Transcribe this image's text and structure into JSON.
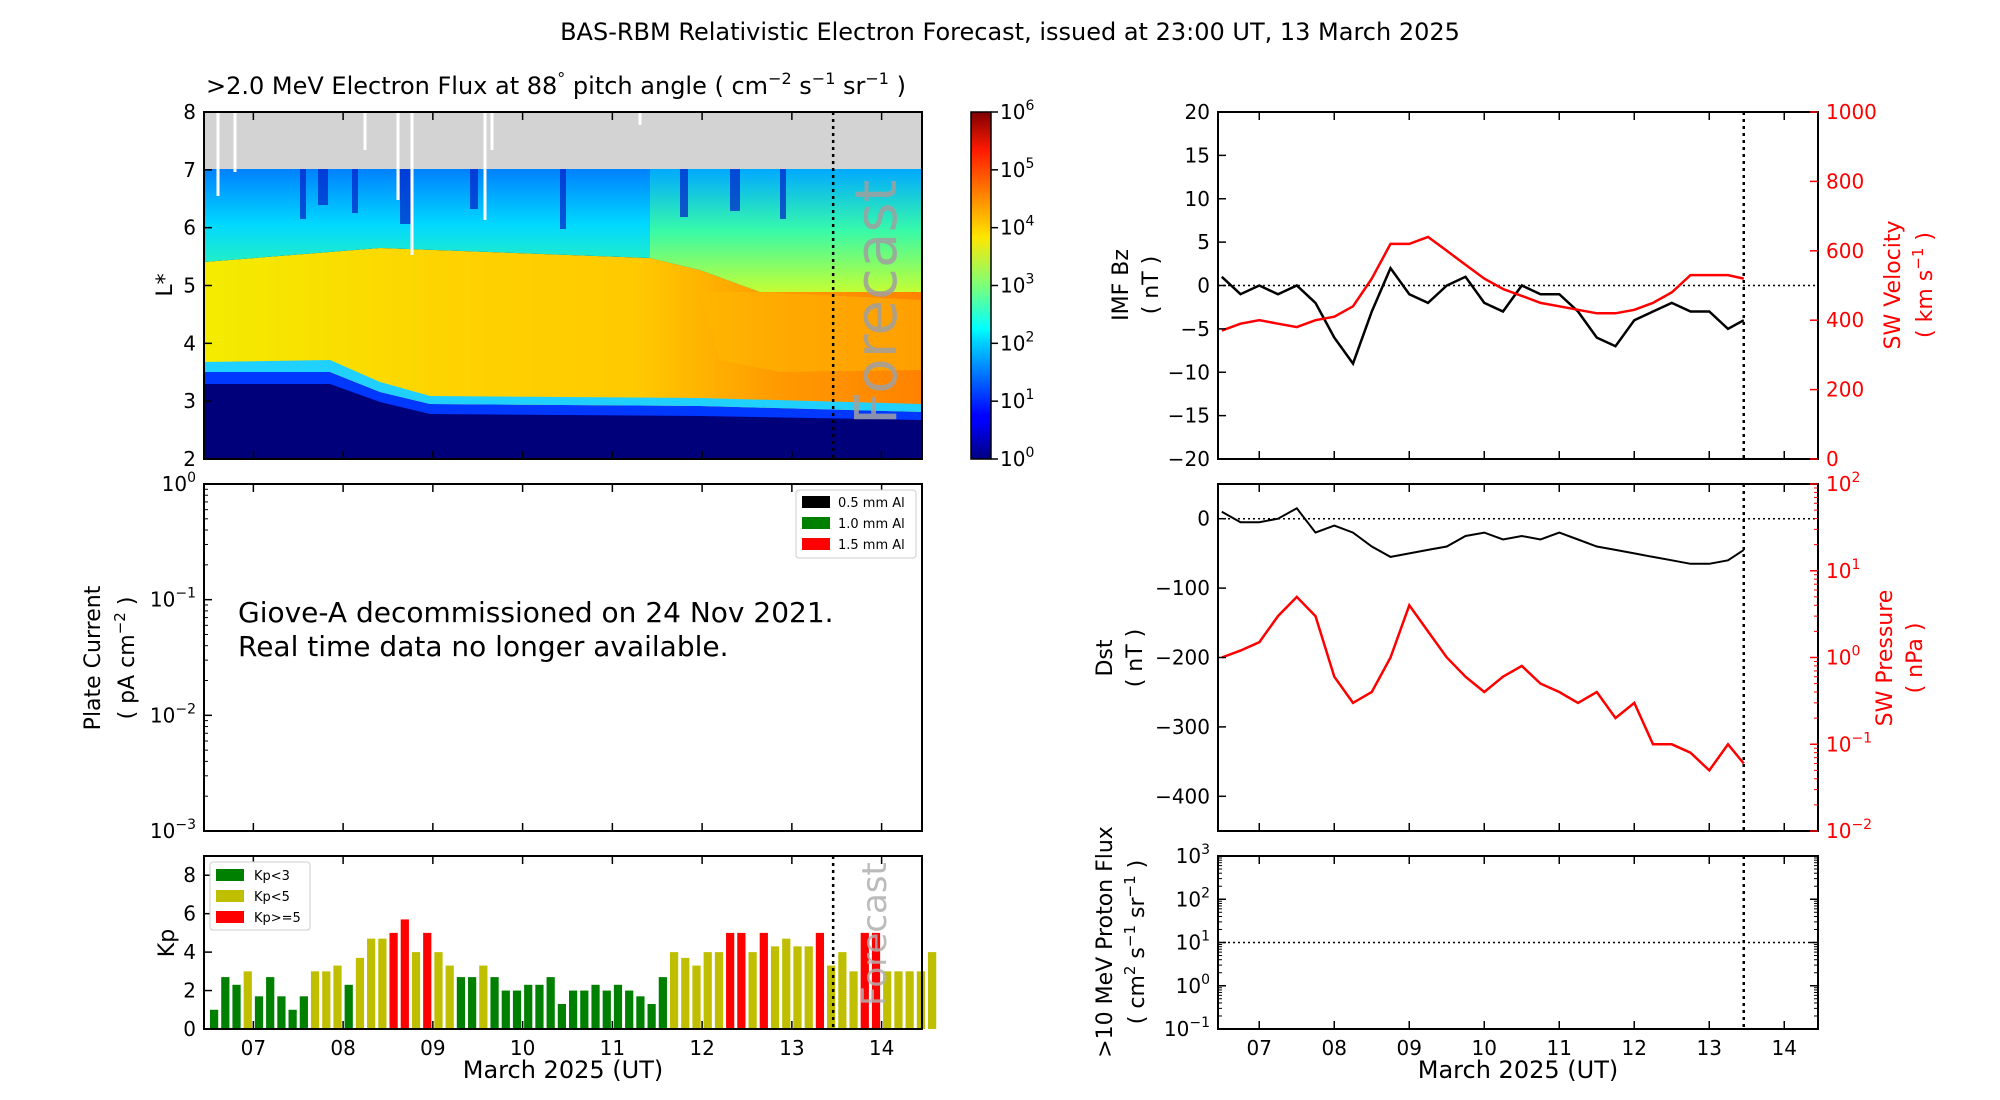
{
  "figure_title": "BAS-RBM Relativistic Electron Forecast, issued at 23:00 UT, 13 March 2025",
  "x_axis": {
    "label": "March 2025 (UT)",
    "range": [
      6.45,
      14.45
    ],
    "tick_values": [
      7,
      8,
      9,
      10,
      11,
      12,
      13,
      14
    ],
    "tick_labels": [
      "07",
      "08",
      "09",
      "10",
      "11",
      "12",
      "13",
      "14"
    ],
    "forecast_start_day": 13.46
  },
  "chart_data": [
    {
      "type": "heatmap",
      "id": "electron-flux",
      "title_prefix": ">2.0 MeV Electron Flux at 88",
      "title_degree": "°",
      "title_mid": " pitch angle ( cm",
      "title_unit_sup1": "−2",
      "title_s": " s",
      "title_unit_sup2": "−1",
      "title_sr": " sr",
      "title_unit_sup3": "−1",
      "title_end": " )",
      "ylabel": "L*",
      "ylim": [
        2,
        8
      ],
      "yticks": [
        2,
        3,
        4,
        5,
        6,
        7,
        8
      ],
      "no_data_above_L": 7,
      "forecast_label": "Forecast",
      "colorbar": {
        "scale": "log",
        "range_exponent": [
          0,
          6
        ],
        "tick_exponents": [
          0,
          1,
          2,
          3,
          4,
          5,
          6
        ],
        "tick_base": "10"
      }
    },
    {
      "type": "line",
      "id": "plate-current",
      "ylabel": "Plate Current",
      "ylabel_unit_prefix": "( pA cm",
      "ylabel_unit_sup": "−2",
      "ylabel_unit_suffix": " )",
      "yscale": "log",
      "ylim_exponent": [
        -3,
        0
      ],
      "ytick_exponents": [
        -3,
        -2,
        -1,
        0
      ],
      "legend": [
        "0.5 mm Al",
        "1.0 mm Al",
        "1.5 mm Al"
      ],
      "legend_colors": [
        "#000000",
        "#008000",
        "#ff0000"
      ],
      "message_line1": "Giove-A decommissioned on 24 Nov 2021.",
      "message_line2": "Real time data no longer available."
    },
    {
      "type": "bar",
      "id": "kp-index",
      "ylabel": "Kp",
      "ylim": [
        0,
        9
      ],
      "yticks": [
        0,
        2,
        4,
        6,
        8
      ],
      "legend": [
        "Kp<3",
        "Kp<5",
        "Kp>=5"
      ],
      "colors": {
        "low": "#008000",
        "mid": "#bfbf00",
        "high": "#ff0000"
      },
      "forecast_label": "Forecast",
      "bar_interval_days": 0.125,
      "first_bar_start_day": 6.5,
      "values": [
        1.0,
        2.7,
        2.3,
        3.0,
        1.7,
        2.7,
        1.7,
        1.0,
        1.7,
        3.0,
        3.0,
        3.3,
        2.3,
        3.7,
        4.7,
        4.7,
        5.0,
        5.7,
        4.0,
        5.0,
        4.0,
        3.3,
        2.7,
        2.7,
        3.3,
        2.7,
        2.0,
        2.0,
        2.3,
        2.3,
        2.7,
        1.3,
        2.0,
        2.0,
        2.3,
        2.0,
        2.3,
        2.0,
        1.7,
        1.3,
        2.7,
        4.0,
        3.7,
        3.3,
        4.0,
        4.0,
        5.0,
        5.0,
        4.0,
        5.0,
        4.3,
        4.7,
        4.3,
        4.3,
        5.0,
        3.3,
        4.0,
        3.0,
        5.0,
        5.0,
        3.0,
        3.0,
        3.0,
        3.0,
        4.0
      ]
    },
    {
      "type": "line",
      "id": "imf-sw-velocity",
      "ylabel_left": "IMF Bz",
      "ylabel_left_unit": "( nT )",
      "ylim_left": [
        -20,
        20
      ],
      "yticks_left": [
        -20,
        -15,
        -10,
        -5,
        0,
        5,
        10,
        15,
        20
      ],
      "ylabel_right": "SW Velocity",
      "ylabel_right_unit_prefix": "( km s",
      "ylabel_right_unit_sup": "−1",
      "ylabel_right_unit_suffix": " )",
      "ylim_right": [
        0,
        1000
      ],
      "yticks_right": [
        0,
        200,
        400,
        600,
        800,
        1000
      ],
      "series": [
        {
          "name": "IMF Bz",
          "color": "#000000",
          "x": [
            6.5,
            6.75,
            7.0,
            7.25,
            7.5,
            7.75,
            8.0,
            8.25,
            8.5,
            8.75,
            9.0,
            9.25,
            9.5,
            9.75,
            10.0,
            10.25,
            10.5,
            10.75,
            11.0,
            11.25,
            11.5,
            11.75,
            12.0,
            12.25,
            12.5,
            12.75,
            13.0,
            13.25,
            13.46
          ],
          "y": [
            1,
            -1,
            0,
            -1,
            0,
            -2,
            -6,
            -9,
            -3,
            2,
            -1,
            -2,
            0,
            1,
            -2,
            -3,
            0,
            -1,
            -1,
            -3,
            -6,
            -7,
            -4,
            -3,
            -2,
            -3,
            -3,
            -5,
            -4
          ]
        },
        {
          "name": "SW Velocity",
          "color": "#ff0000",
          "x": [
            6.5,
            6.75,
            7.0,
            7.25,
            7.5,
            7.75,
            8.0,
            8.25,
            8.5,
            8.75,
            9.0,
            9.25,
            9.5,
            9.75,
            10.0,
            10.25,
            10.5,
            10.75,
            11.0,
            11.25,
            11.5,
            11.75,
            12.0,
            12.25,
            12.5,
            12.75,
            13.0,
            13.25,
            13.46
          ],
          "y": [
            370,
            390,
            400,
            390,
            380,
            400,
            410,
            440,
            520,
            620,
            620,
            640,
            600,
            560,
            520,
            490,
            470,
            450,
            440,
            430,
            420,
            420,
            430,
            450,
            480,
            530,
            530,
            530,
            520
          ]
        }
      ],
      "reference_line_left": 0
    },
    {
      "type": "line",
      "id": "dst-sw-pressure",
      "ylabel_left": "Dst",
      "ylabel_left_unit": "( nT )",
      "ylim_left": [
        -450,
        50
      ],
      "yticks_left": [
        -400,
        -300,
        -200,
        -100,
        0
      ],
      "ylabel_right": "SW Pressure",
      "ylabel_right_unit": "( nPa )",
      "yscale_right": "log",
      "ylim_right_exponent": [
        -2,
        2
      ],
      "yticks_right_exponent": [
        -2,
        -1,
        0,
        1,
        2
      ],
      "series": [
        {
          "name": "Dst",
          "color": "#000000",
          "x": [
            6.5,
            6.75,
            7.0,
            7.25,
            7.5,
            7.75,
            8.0,
            8.25,
            8.5,
            8.75,
            9.0,
            9.25,
            9.5,
            9.75,
            10.0,
            10.25,
            10.5,
            10.75,
            11.0,
            11.25,
            11.5,
            11.75,
            12.0,
            12.25,
            12.5,
            12.75,
            13.0,
            13.25,
            13.46
          ],
          "y": [
            10,
            -5,
            -5,
            0,
            15,
            -20,
            -10,
            -20,
            -40,
            -55,
            -50,
            -45,
            -40,
            -25,
            -20,
            -30,
            -25,
            -30,
            -20,
            -30,
            -40,
            -45,
            -50,
            -55,
            -60,
            -65,
            -65,
            -60,
            -45
          ]
        },
        {
          "name": "SW Pressure",
          "color": "#ff0000",
          "x": [
            6.5,
            6.75,
            7.0,
            7.25,
            7.5,
            7.75,
            8.0,
            8.25,
            8.5,
            8.75,
            9.0,
            9.25,
            9.5,
            9.75,
            10.0,
            10.25,
            10.5,
            10.75,
            11.0,
            11.25,
            11.5,
            11.75,
            12.0,
            12.25,
            12.5,
            12.75,
            13.0,
            13.25,
            13.46
          ],
          "y": [
            1.0,
            1.2,
            1.5,
            3.0,
            5.0,
            3.0,
            0.6,
            0.3,
            0.4,
            1.0,
            4.0,
            2.0,
            1.0,
            0.6,
            0.4,
            0.6,
            0.8,
            0.5,
            0.4,
            0.3,
            0.4,
            0.2,
            0.3,
            0.1,
            0.1,
            0.08,
            0.05,
            0.1,
            0.06
          ]
        }
      ],
      "reference_line_left": 0
    },
    {
      "type": "line",
      "id": "proton-flux",
      "ylabel_prefix": ">10 MeV Proton Flux",
      "ylabel_unit_prefix": "( cm",
      "ylabel_unit_sup1": "2",
      "ylabel_s": " s",
      "ylabel_unit_sup2": "−1",
      "ylabel_sr": " sr",
      "ylabel_unit_sup3": "−1",
      "ylabel_unit_suffix": " )",
      "yscale": "log",
      "ylim_exponent": [
        -1,
        3
      ],
      "ytick_exponents": [
        -1,
        0,
        1,
        2,
        3
      ],
      "threshold_exponent": 1
    }
  ]
}
